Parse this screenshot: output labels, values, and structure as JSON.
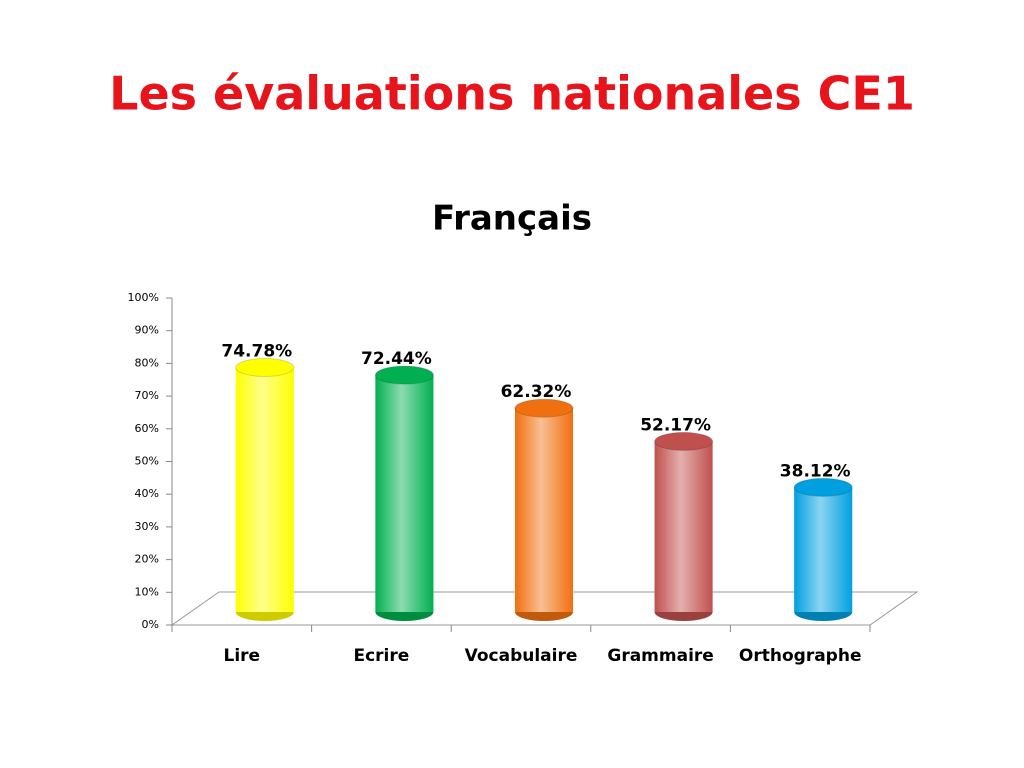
{
  "page_title": "Les évaluations nationales CE1",
  "chart_data": {
    "type": "bar",
    "title": "Français",
    "categories": [
      "Lire",
      "Ecrire",
      "Vocabulaire",
      "Grammaire",
      "Orthographe"
    ],
    "values": [
      74.78,
      72.44,
      62.32,
      52.17,
      38.12
    ],
    "value_labels": [
      "74.78%",
      "72.44%",
      "62.32%",
      "52.17%",
      "38.12%"
    ],
    "colors": [
      "#ffff00",
      "#00b050",
      "#f07010",
      "#c0504d",
      "#00a0e0"
    ],
    "ylim": [
      0,
      100
    ],
    "yticks": [
      {
        "value": 0,
        "label": "0%"
      },
      {
        "value": 10,
        "label": "10%"
      },
      {
        "value": 20,
        "label": "20%"
      },
      {
        "value": 30,
        "label": "30%"
      },
      {
        "value": 40,
        "label": "40%"
      },
      {
        "value": 50,
        "label": "50%"
      },
      {
        "value": 60,
        "label": "60%"
      },
      {
        "value": 70,
        "label": "70%"
      },
      {
        "value": 80,
        "label": "80%"
      },
      {
        "value": 90,
        "label": "90%"
      },
      {
        "value": 100,
        "label": "100%"
      }
    ]
  }
}
